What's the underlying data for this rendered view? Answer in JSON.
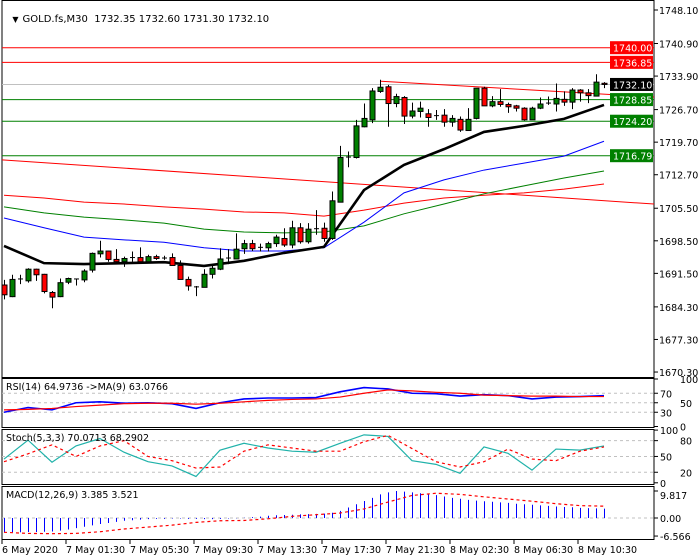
{
  "title": {
    "menu_icon": "triangle-down-icon",
    "symbol": "GOLD.fs,M30",
    "ohlc": "1732.35 1732.60 1731.30 1732.10"
  },
  "chart_data": [
    {
      "type": "candlestick",
      "title": "GOLD.fs,M30",
      "colors": {
        "bull": "#008000",
        "bear": "#ff0000",
        "outline": "#000000",
        "bid_line": "#c0c0c0"
      },
      "y_ticks": [
        "1748.10",
        "1740.90",
        "1733.90",
        "1726.70",
        "1719.70",
        "1712.70",
        "1705.50",
        "1698.50",
        "1691.50",
        "1684.30",
        "1677.30",
        "1670.30"
      ],
      "ylim": [
        1670.3,
        1748.1
      ],
      "x_ticks": [
        "6 May 2020",
        "7 May 01:30",
        "7 May 05:30",
        "7 May 09:30",
        "7 May 13:30",
        "7 May 17:30",
        "7 May 21:30",
        "8 May 02:30",
        "8 May 06:30",
        "8 May 10:30"
      ],
      "candles": [
        [
          1689.0,
          1690.1,
          1685.9,
          1686.9
        ],
        [
          1686.5,
          1691.2,
          1686.4,
          1690.2
        ],
        [
          1690.2,
          1691.2,
          1689.2,
          1690.3
        ],
        [
          1689.9,
          1692.6,
          1689.5,
          1692.4
        ],
        [
          1692.4,
          1692.5,
          1689.9,
          1691.2
        ],
        [
          1691.3,
          1691.4,
          1687.2,
          1687.6
        ],
        [
          1687.4,
          1687.7,
          1684.0,
          1686.4
        ],
        [
          1686.5,
          1690.4,
          1686.4,
          1689.5
        ],
        [
          1689.6,
          1690.6,
          1689.2,
          1690.4
        ],
        [
          1690.2,
          1690.4,
          1688.9,
          1690.3
        ],
        [
          1690.1,
          1692.4,
          1689.6,
          1692.0
        ],
        [
          1692.2,
          1696.0,
          1691.7,
          1695.8
        ],
        [
          1695.7,
          1698.5,
          1694.9,
          1696.3
        ],
        [
          1696.3,
          1696.4,
          1694.0,
          1694.5
        ],
        [
          1694.5,
          1696.7,
          1693.5,
          1694.0
        ],
        [
          1694.0,
          1695.1,
          1692.9,
          1694.7
        ],
        [
          1694.8,
          1696.2,
          1694.0,
          1694.9
        ],
        [
          1694.9,
          1697.1,
          1693.8,
          1694.0
        ],
        [
          1694.0,
          1695.5,
          1693.8,
          1695.1
        ],
        [
          1695.1,
          1695.5,
          1694.4,
          1694.7
        ],
        [
          1694.9,
          1695.3,
          1694.4,
          1694.8
        ],
        [
          1694.9,
          1695.8,
          1693.2,
          1693.2
        ],
        [
          1693.2,
          1694.3,
          1690.2,
          1690.2
        ],
        [
          1690.2,
          1690.8,
          1687.8,
          1688.8
        ],
        [
          1688.7,
          1688.8,
          1686.6,
          1688.6
        ],
        [
          1688.5,
          1692.4,
          1688.5,
          1691.3
        ],
        [
          1691.3,
          1693.3,
          1690.4,
          1692.6
        ],
        [
          1692.4,
          1696.9,
          1692.2,
          1694.6
        ],
        [
          1694.7,
          1696.7,
          1693.5,
          1694.8
        ],
        [
          1694.6,
          1700.1,
          1694.6,
          1696.7
        ],
        [
          1696.8,
          1698.7,
          1695.7,
          1697.9
        ],
        [
          1697.9,
          1698.7,
          1696.3,
          1696.8
        ],
        [
          1697.0,
          1697.9,
          1696.2,
          1697.1
        ],
        [
          1697.0,
          1698.3,
          1696.2,
          1697.9
        ],
        [
          1697.9,
          1699.8,
          1697.2,
          1699.3
        ],
        [
          1699.0,
          1701.2,
          1697.2,
          1697.6
        ],
        [
          1697.6,
          1702.8,
          1696.9,
          1701.3
        ],
        [
          1701.3,
          1702.3,
          1697.9,
          1698.3
        ],
        [
          1698.3,
          1702.3,
          1697.9,
          1701.0
        ],
        [
          1701.0,
          1705.1,
          1699.8,
          1701.1
        ],
        [
          1701.2,
          1702.4,
          1698.3,
          1699.0
        ],
        [
          1699.0,
          1709.1,
          1698.7,
          1707.1
        ],
        [
          1706.8,
          1718.9,
          1706.8,
          1716.4
        ],
        [
          1716.4,
          1717.7,
          1714.3,
          1716.5
        ],
        [
          1716.4,
          1724.5,
          1716.2,
          1723.2
        ],
        [
          1723.0,
          1728.0,
          1722.9,
          1724.8
        ],
        [
          1724.5,
          1731.3,
          1723.8,
          1730.7
        ],
        [
          1730.6,
          1733.1,
          1730.3,
          1731.5
        ],
        [
          1731.6,
          1732.0,
          1723.0,
          1728.0
        ],
        [
          1728.0,
          1730.1,
          1727.2,
          1729.5
        ],
        [
          1729.3,
          1729.6,
          1723.6,
          1725.3
        ],
        [
          1725.3,
          1728.2,
          1724.8,
          1726.4
        ],
        [
          1726.3,
          1728.4,
          1725.0,
          1727.0
        ],
        [
          1725.8,
          1726.8,
          1723.0,
          1725.0
        ],
        [
          1725.5,
          1726.6,
          1724.5,
          1725.4
        ],
        [
          1725.5,
          1726.8,
          1723.0,
          1724.0
        ],
        [
          1724.0,
          1725.5,
          1723.0,
          1724.8
        ],
        [
          1724.6,
          1725.2,
          1721.9,
          1722.3
        ],
        [
          1722.2,
          1727.0,
          1722.2,
          1724.6
        ],
        [
          1724.8,
          1731.3,
          1724.6,
          1731.3
        ],
        [
          1731.3,
          1731.6,
          1727.5,
          1727.5
        ],
        [
          1727.5,
          1729.6,
          1727.2,
          1728.4
        ],
        [
          1728.4,
          1731.1,
          1727.3,
          1727.8
        ],
        [
          1727.8,
          1728.2,
          1726.0,
          1727.3
        ],
        [
          1727.5,
          1727.7,
          1726.3,
          1727.0
        ],
        [
          1727.0,
          1727.2,
          1724.3,
          1724.5
        ],
        [
          1724.5,
          1727.3,
          1724.5,
          1727.0
        ],
        [
          1727.0,
          1729.3,
          1726.8,
          1727.9
        ],
        [
          1728.0,
          1729.5,
          1727.7,
          1728.1
        ],
        [
          1727.9,
          1732.3,
          1726.3,
          1729.1
        ],
        [
          1728.9,
          1730.6,
          1727.5,
          1728.3
        ],
        [
          1728.3,
          1731.3,
          1726.8,
          1730.9
        ],
        [
          1730.9,
          1731.1,
          1728.4,
          1730.3
        ],
        [
          1730.3,
          1731.1,
          1728.1,
          1729.7
        ],
        [
          1729.6,
          1734.3,
          1729.5,
          1732.6
        ],
        [
          1732.35,
          1732.6,
          1731.3,
          1732.1
        ]
      ],
      "moving_averages": [
        {
          "color": "#ff0000",
          "values": [
            1708.3,
            1707.7,
            1706.8,
            1706.4,
            1705.8,
            1705.3,
            1704.7,
            1704.5,
            1703.8,
            1705.1,
            1706.6,
            1707.7,
            1708.3,
            1708.8,
            1709.6,
            1710.7
          ]
        },
        {
          "color": "#008000",
          "values": [
            1705.8,
            1704.5,
            1703.6,
            1703.0,
            1702.3,
            1701.0,
            1700.4,
            1700.2,
            1700.4,
            1701.7,
            1704.3,
            1706.4,
            1708.6,
            1710.3,
            1712.0,
            1713.5
          ]
        },
        {
          "color": "#0000ff",
          "values": [
            1703.4,
            1701.3,
            1699.3,
            1698.7,
            1698.2,
            1697.0,
            1696.3,
            1696.3,
            1697.0,
            1702.5,
            1708.8,
            1711.6,
            1713.7,
            1715.2,
            1716.7,
            1719.9
          ]
        },
        {
          "color": "#000000",
          "values": [
            1697.4,
            1693.7,
            1693.5,
            1693.7,
            1693.9,
            1693.1,
            1694.2,
            1695.9,
            1697.2,
            1709.4,
            1714.8,
            1718.2,
            1721.9,
            1723.2,
            1724.7,
            1727.7
          ]
        }
      ],
      "trendlines": [
        {
          "color": "#ff0000",
          "from_price": 1715.9,
          "to_price": 1706.4
        },
        {
          "color": "#ff0000",
          "from_price": 1732.8,
          "to_price": 1729.4
        }
      ],
      "levels": [
        {
          "label": "1740.00",
          "price": 1740.0,
          "color": "#ff0000"
        },
        {
          "label": "1736.85",
          "price": 1736.85,
          "color": "#ff0000"
        },
        {
          "label": "1732.10",
          "price": 1732.1,
          "color": "#000000"
        },
        {
          "label": "1728.85",
          "price": 1728.85,
          "color": "#008000"
        },
        {
          "label": "1724.20",
          "price": 1724.2,
          "color": "#008000"
        },
        {
          "label": "1716.79",
          "price": 1716.79,
          "color": "#008000"
        }
      ]
    },
    {
      "type": "line",
      "title": "RSI(14) 64.9736  ->MA(9) 63.0766",
      "ylim": [
        0,
        100
      ],
      "y_ticks": [
        "100",
        "70",
        "50",
        "30",
        "0"
      ],
      "levels": [
        70,
        50,
        30
      ],
      "series": [
        {
          "color": "#0000ff",
          "values": [
            30,
            40,
            35,
            50,
            52,
            49,
            50,
            48,
            38,
            50,
            58,
            60,
            60,
            61,
            73,
            82,
            79,
            70,
            69,
            64,
            67,
            65,
            58,
            62,
            63,
            65
          ]
        },
        {
          "color": "#ff0000",
          "values": [
            35,
            36,
            38,
            42,
            45,
            48,
            49,
            49,
            47,
            49,
            52,
            55,
            57,
            58,
            62,
            70,
            77,
            75,
            72,
            70,
            66,
            65,
            64,
            64,
            63,
            63
          ]
        }
      ]
    },
    {
      "type": "line",
      "title": "Stoch(5,3,3) 70.0713 68.2902",
      "ylim": [
        0,
        100
      ],
      "y_ticks": [
        "100",
        "80",
        "50",
        "20",
        "0"
      ],
      "levels": [
        80,
        50,
        20
      ],
      "series": [
        {
          "color": "#20b2aa",
          "values": [
            45,
            81,
            39,
            70,
            84,
            58,
            40,
            32,
            12,
            62,
            75,
            66,
            60,
            58,
            75,
            91,
            88,
            42,
            35,
            18,
            68,
            56,
            24,
            64,
            62,
            70
          ]
        },
        {
          "color": "#ff0000",
          "dashed": true,
          "values": [
            40,
            55,
            72,
            50,
            70,
            80,
            50,
            42,
            28,
            30,
            60,
            72,
            66,
            60,
            60,
            78,
            90,
            65,
            40,
            30,
            40,
            64,
            45,
            42,
            60,
            68
          ]
        }
      ]
    },
    {
      "type": "bar",
      "title": "MACD(12,26,9) 3.385 3.521",
      "ylim": [
        -6.566,
        9.817
      ],
      "y_ticks": [
        "9.817",
        "0.00",
        "-6.566"
      ],
      "histogram": {
        "color": "#0000ff",
        "values": [
          -5.2,
          -5.2,
          -5.2,
          -5.1,
          -5.1,
          -5.0,
          -4.9,
          -4.6,
          -4.2,
          -3.7,
          -3.2,
          -2.7,
          -2.2,
          -1.8,
          -1.4,
          -1.0,
          -0.8,
          -0.6,
          -0.4,
          -0.3,
          -0.3,
          -0.2,
          -0.2,
          -0.3,
          -0.3,
          -0.4,
          -0.4,
          -0.3,
          -0.2,
          -0.1,
          0.1,
          0.3,
          0.5,
          0.8,
          1.0,
          1.1,
          1.2,
          1.3,
          1.4,
          1.5,
          1.6,
          1.9,
          2.6,
          3.8,
          5.0,
          6.2,
          7.3,
          8.6,
          9.3,
          9.8,
          9.6,
          9.3,
          9.0,
          8.7,
          8.3,
          7.8,
          7.3,
          7.0,
          6.6,
          6.3,
          6.1,
          5.9,
          5.7,
          5.5,
          5.2,
          5.0,
          4.8,
          4.6,
          4.4,
          4.2,
          4.0,
          3.9,
          3.7,
          3.6,
          3.5,
          3.4
        ]
      },
      "signal": {
        "color": "#ff0000",
        "dashed": true,
        "values": [
          -5.2,
          -5.6,
          -5.7,
          -5.6,
          -5.0,
          -4.0,
          -3.3,
          -2.6,
          -1.6,
          -1.0,
          -0.9,
          -0.3,
          0.6,
          1.2,
          1.8,
          3.3,
          5.8,
          8.2,
          9.0,
          8.6,
          7.7,
          6.9,
          6.1,
          5.2,
          4.5,
          4.3
        ]
      }
    }
  ]
}
